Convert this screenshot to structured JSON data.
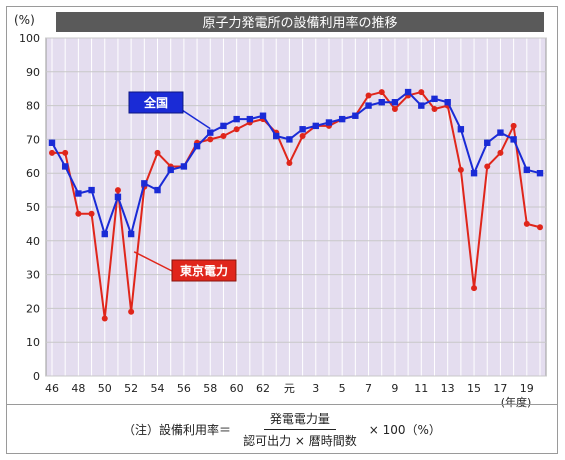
{
  "chart_data": {
    "type": "line",
    "title": "原子力発電所の設備利用率の推移",
    "ylabel": "(%)",
    "xlabel": "(年度)",
    "ylim": [
      0,
      100
    ],
    "yticks": [
      "0",
      "10",
      "20",
      "30",
      "40",
      "50",
      "60",
      "70",
      "80",
      "90",
      "100"
    ],
    "categories": [
      "46",
      "47",
      "48",
      "49",
      "50",
      "51",
      "52",
      "53",
      "54",
      "55",
      "56",
      "57",
      "58",
      "59",
      "60",
      "61",
      "62",
      "63",
      "元",
      "2",
      "3",
      "4",
      "5",
      "6",
      "7",
      "8",
      "9",
      "10",
      "11",
      "12",
      "13",
      "14",
      "15",
      "16",
      "17",
      "18",
      "19",
      "20"
    ],
    "xtick_labels": [
      "46",
      "",
      "48",
      "",
      "50",
      "",
      "52",
      "",
      "54",
      "",
      "56",
      "",
      "58",
      "",
      "60",
      "",
      "62",
      "",
      "元",
      "",
      "3",
      "",
      "5",
      "",
      "7",
      "",
      "9",
      "",
      "11",
      "",
      "13",
      "",
      "15",
      "",
      "17",
      "",
      "19",
      ""
    ],
    "grid": true,
    "series": [
      {
        "name": "全国",
        "color": "#1a2bd6",
        "values": [
          69,
          62,
          54,
          55,
          42,
          53,
          42,
          57,
          55,
          61,
          62,
          68,
          72,
          74,
          76,
          76,
          77,
          71,
          70,
          73,
          74,
          75,
          76,
          77,
          80,
          81,
          81,
          84,
          80,
          82,
          81,
          73,
          60,
          69,
          72,
          70,
          61,
          60
        ]
      },
      {
        "name": "東京電力",
        "color": "#e0261b",
        "values": [
          66,
          66,
          48,
          48,
          17,
          55,
          19,
          56,
          66,
          62,
          62,
          69,
          70,
          71,
          73,
          75,
          76,
          72,
          63,
          71,
          74,
          74,
          76,
          77,
          83,
          84,
          79,
          83,
          84,
          79,
          80,
          61,
          26,
          62,
          66,
          74,
          45,
          44
        ]
      }
    ]
  },
  "colors": {
    "title_bg": "#5a5a5a",
    "plot_bg": "#e4ddef",
    "grid": "#c8c8c8"
  },
  "note": {
    "prefix": "（注）設備利用率＝",
    "numerator": "発電電力量",
    "denominator": "認可出力 × 暦時間数",
    "suffix": "× 100（%）"
  }
}
